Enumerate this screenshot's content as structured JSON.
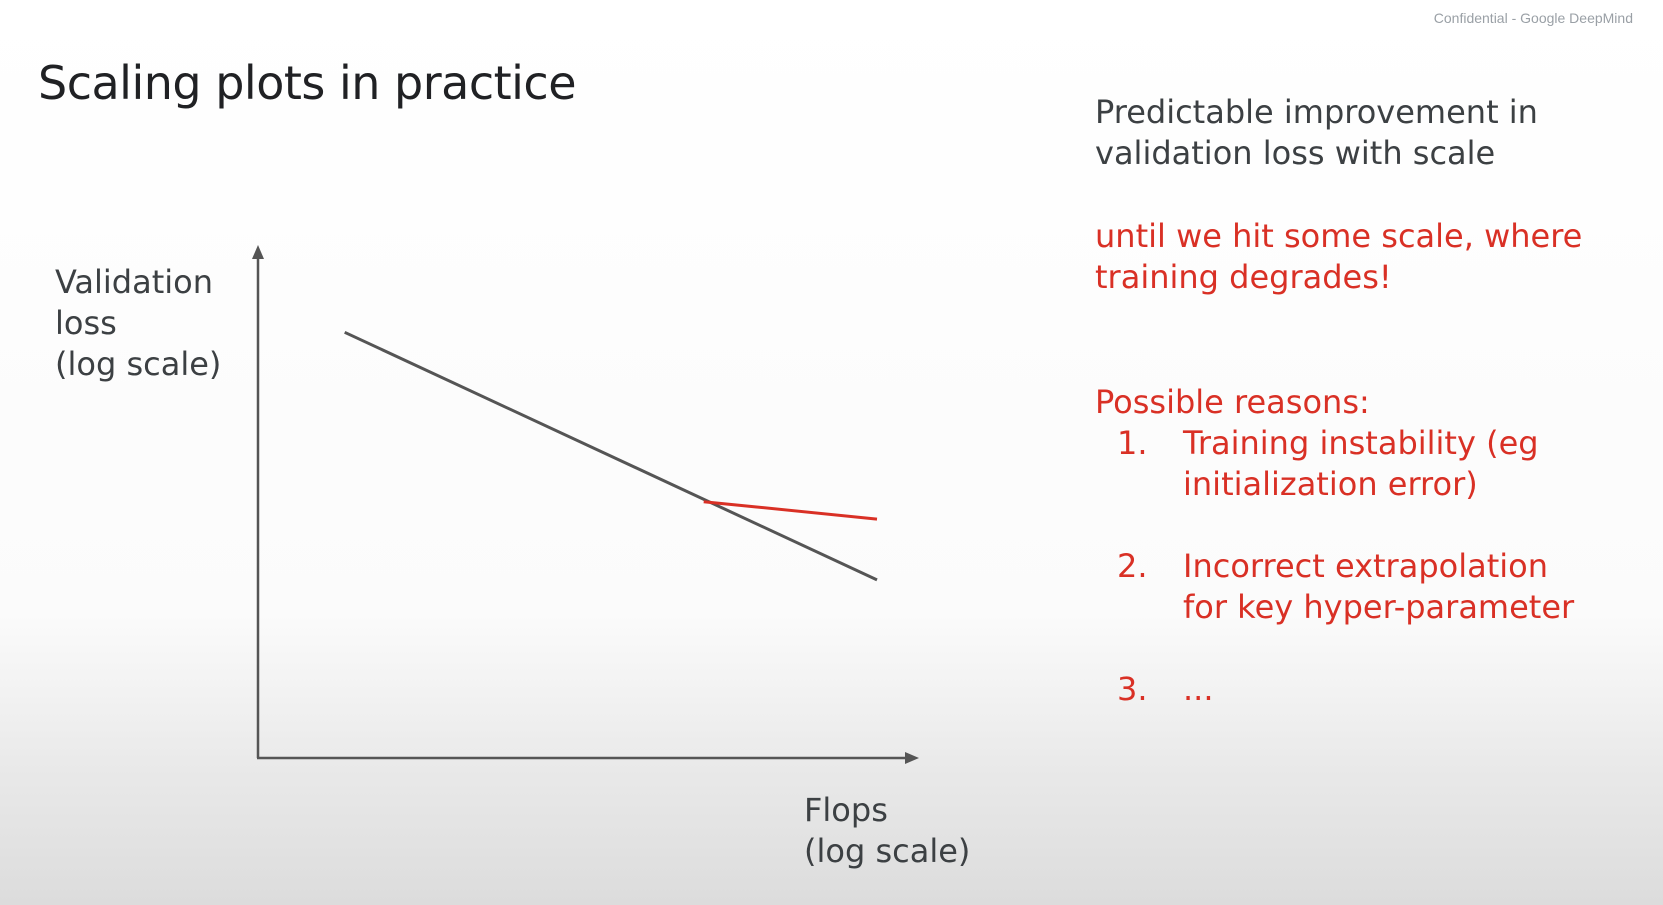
{
  "header": {
    "confidential": "Confidential - Google DeepMind",
    "title": "Scaling plots in practice"
  },
  "chart_data": {
    "type": "line",
    "ylabel_lines": [
      "Validation",
      "loss",
      "(log scale)"
    ],
    "xlabel_lines": [
      "Flops",
      "(log scale)"
    ],
    "series": [
      {
        "color": "#555555",
        "x": [
          0.14,
          1.0
        ],
        "y": [
          0.98,
          0.41
        ]
      },
      {
        "color": "#d93025",
        "x": [
          0.72,
          1.0
        ],
        "y": [
          0.59,
          0.55
        ]
      }
    ],
    "xlim": [
      0,
      1.05
    ],
    "ylim": [
      0,
      1.22
    ],
    "grid": false
  },
  "right_panel": {
    "para1_lines": [
      "Predictable improvement in",
      "validation loss with scale"
    ],
    "para2_lines": [
      "until we hit some scale, where",
      "training degrades!"
    ],
    "reasons_heading": "Possible reasons:",
    "reasons": [
      {
        "num": "1.",
        "lines": [
          "Training instability (eg",
          "initialization error)"
        ]
      },
      {
        "num": "2.",
        "lines": [
          "Incorrect extrapolation",
          "for key hyper-parameter"
        ]
      },
      {
        "num": "3.",
        "lines": [
          "..."
        ]
      }
    ]
  },
  "colors": {
    "accent": "#d93025",
    "text": "#3c4043",
    "axis": "#555555"
  }
}
